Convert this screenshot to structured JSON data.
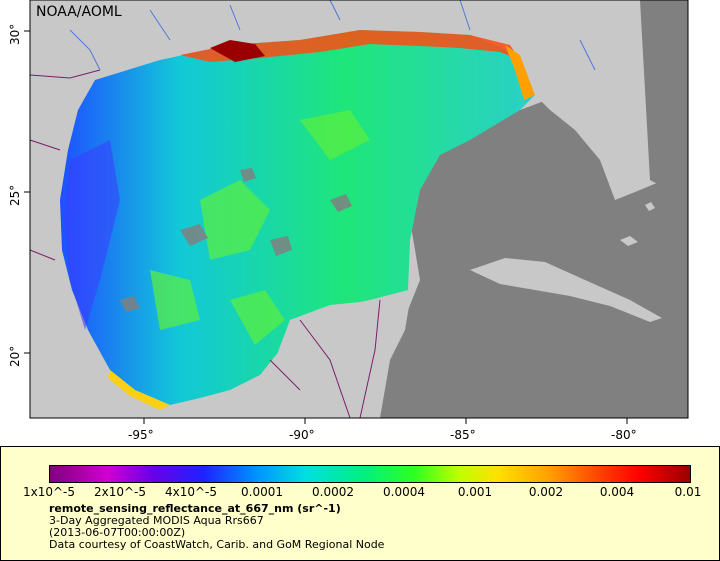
{
  "map": {
    "credit": "NOAA/AOML",
    "lon_labels": [
      "-95°",
      "-90°",
      "-85°",
      "-80°"
    ],
    "lat_labels": [
      "30°",
      "25°",
      "20°"
    ],
    "colors": {
      "land": "#c8c8c8",
      "no_data": "#808080",
      "border": "#7a1e6c",
      "river": "#4f79d8"
    }
  },
  "legend": {
    "ticks": [
      "1x10^-5",
      "2x10^-5",
      "4x10^-5",
      "0.0001",
      "0.0002",
      "0.0004",
      "0.001",
      "0.002",
      "0.004",
      "0.01"
    ],
    "variable": "remote_sensing_reflectance_at_667_nm (sr^-1)",
    "description": "3-Day Aggregated MODIS Aqua Rrs667",
    "time": "(2013-06-07T00:00:00Z)",
    "courtesy": "Data courtesy of CoastWatch, Carib. and GoM Regional Node"
  }
}
